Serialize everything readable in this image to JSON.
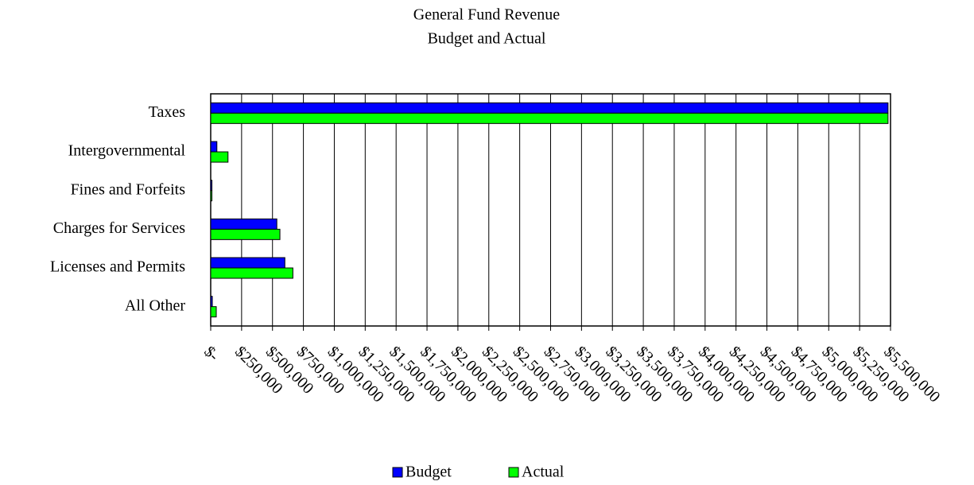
{
  "chart_data": {
    "type": "hbar",
    "title": "General Fund Revenue",
    "subtitle": "Budget and Actual",
    "categories": [
      "Taxes",
      "Intergovernmental",
      "Fines and Forfeits",
      "Charges for Services",
      "Licenses and Permits",
      "All Other"
    ],
    "series": [
      {
        "name": "Budget",
        "color": "#0000ff",
        "values": [
          5480000,
          50000,
          10000,
          535000,
          600000,
          13000
        ]
      },
      {
        "name": "Actual",
        "color": "#00ff00",
        "values": [
          5480000,
          140000,
          10000,
          560000,
          665000,
          45000
        ]
      }
    ],
    "xlim": [
      0,
      5500000
    ],
    "xticks": [
      {
        "value": 0,
        "label": "$-"
      },
      {
        "value": 250000,
        "label": "$250,000"
      },
      {
        "value": 500000,
        "label": "$500,000"
      },
      {
        "value": 750000,
        "label": "$750,000"
      },
      {
        "value": 1000000,
        "label": "$1,000,000"
      },
      {
        "value": 1250000,
        "label": "$1,250,000"
      },
      {
        "value": 1500000,
        "label": "$1,500,000"
      },
      {
        "value": 1750000,
        "label": "$1,750,000"
      },
      {
        "value": 2000000,
        "label": "$2,000,000"
      },
      {
        "value": 2250000,
        "label": "$2,250,000"
      },
      {
        "value": 2500000,
        "label": "$2,500,000"
      },
      {
        "value": 2750000,
        "label": "$2,750,000"
      },
      {
        "value": 3000000,
        "label": "$3,000,000"
      },
      {
        "value": 3250000,
        "label": "$3,250,000"
      },
      {
        "value": 3500000,
        "label": "$3,500,000"
      },
      {
        "value": 3750000,
        "label": "$3,750,000"
      },
      {
        "value": 4000000,
        "label": "$4,000,000"
      },
      {
        "value": 4250000,
        "label": "$4,250,000"
      },
      {
        "value": 4500000,
        "label": "$4,500,000"
      },
      {
        "value": 4750000,
        "label": "$4,750,000"
      },
      {
        "value": 5000000,
        "label": "$5,000,000"
      },
      {
        "value": 5250000,
        "label": "$5,250,000"
      },
      {
        "value": 5500000,
        "label": "$5,500,000"
      }
    ],
    "grid": true,
    "legend": "bottom"
  }
}
